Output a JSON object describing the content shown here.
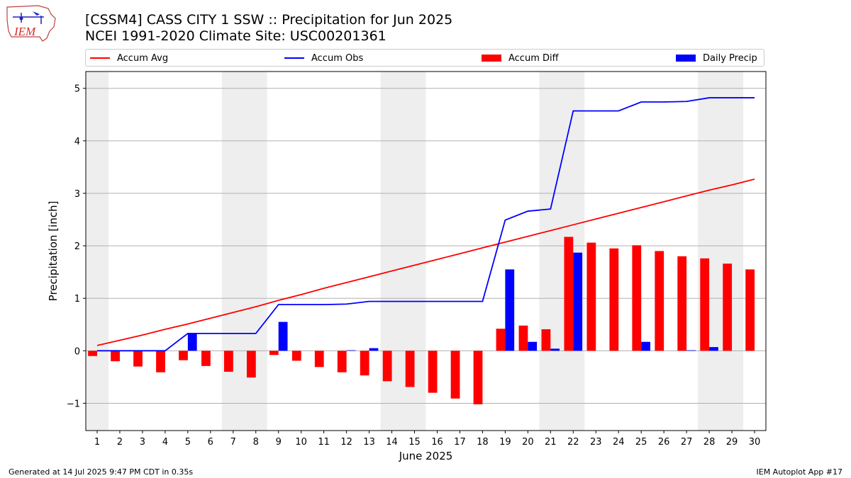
{
  "header": {
    "title_line1": "[CSSM4] CASS CITY 1 SSW :: Precipitation for Jun 2025",
    "title_line2": "NCEI 1991-2020 Climate Site: USC00201361",
    "logo_text": "IEM"
  },
  "footer": {
    "left": "Generated at 14 Jul 2025 9:47 PM CDT in 0.35s",
    "right": "IEM Autoplot App #17"
  },
  "colors": {
    "avg": "#ff0000",
    "obs": "#0000ff",
    "diff": "#ff0000",
    "daily": "#0000ff",
    "weekend_band": "#eeeeee",
    "grid": "#b0b0b0"
  },
  "chart_data": {
    "type": "bar",
    "title": "[CSSM4] CASS CITY 1 SSW :: Precipitation for Jun 2025",
    "subtitle": "NCEI 1991-2020 Climate Site: USC00201361",
    "xlabel": "June 2025",
    "ylabel": "Precipitation [inch]",
    "xlim": [
      0.5,
      30.5
    ],
    "ylim": [
      -1.52,
      5.32
    ],
    "yticks": [
      -1,
      0,
      1,
      2,
      3,
      4,
      5
    ],
    "ytick_labels": [
      "−1",
      "0",
      "1",
      "2",
      "3",
      "4",
      "5"
    ],
    "x": [
      1,
      2,
      3,
      4,
      5,
      6,
      7,
      8,
      9,
      10,
      11,
      12,
      13,
      14,
      15,
      16,
      17,
      18,
      19,
      20,
      21,
      22,
      23,
      24,
      25,
      26,
      27,
      28,
      29,
      30
    ],
    "grid": "y",
    "legend_position": "top",
    "shaded_days": [
      [
        0.5,
        1.5
      ],
      [
        6.5,
        8.5
      ],
      [
        13.5,
        15.5
      ],
      [
        20.5,
        22.5
      ],
      [
        27.5,
        29.5
      ]
    ],
    "series": [
      {
        "name": "Accum Avg",
        "kind": "line",
        "values": [
          0.1,
          0.2,
          0.3,
          0.41,
          0.51,
          0.62,
          0.73,
          0.84,
          0.96,
          1.07,
          1.19,
          1.3,
          1.41,
          1.52,
          1.63,
          1.74,
          1.85,
          1.96,
          2.07,
          2.18,
          2.29,
          2.4,
          2.51,
          2.62,
          2.73,
          2.84,
          2.95,
          3.06,
          3.16,
          3.27
        ]
      },
      {
        "name": "Accum Obs",
        "kind": "line",
        "values": [
          0,
          0,
          0,
          0,
          0.33,
          0.33,
          0.33,
          0.33,
          0.88,
          0.88,
          0.88,
          0.89,
          0.94,
          0.94,
          0.94,
          0.94,
          0.94,
          0.94,
          2.49,
          2.66,
          2.7,
          4.57,
          4.57,
          4.57,
          4.74,
          4.74,
          4.75,
          4.82,
          4.82,
          4.82
        ]
      },
      {
        "name": "Accum Diff",
        "kind": "bar",
        "values": [
          -0.1,
          -0.2,
          -0.3,
          -0.41,
          -0.18,
          -0.29,
          -0.4,
          -0.51,
          -0.08,
          -0.19,
          -0.31,
          -0.41,
          -0.47,
          -0.58,
          -0.69,
          -0.8,
          -0.91,
          -1.02,
          0.42,
          0.48,
          0.41,
          2.17,
          2.06,
          1.95,
          2.01,
          1.9,
          1.8,
          1.76,
          1.66,
          1.55
        ]
      },
      {
        "name": "Daily Precip",
        "kind": "bar",
        "values": [
          0,
          0,
          0,
          0,
          0.33,
          0,
          0,
          0,
          0.55,
          0,
          0,
          0.01,
          0.05,
          0,
          0,
          0,
          0,
          0,
          1.55,
          0.17,
          0.04,
          1.87,
          0,
          0,
          0.17,
          0,
          0.01,
          0.07,
          0,
          0
        ]
      }
    ]
  }
}
